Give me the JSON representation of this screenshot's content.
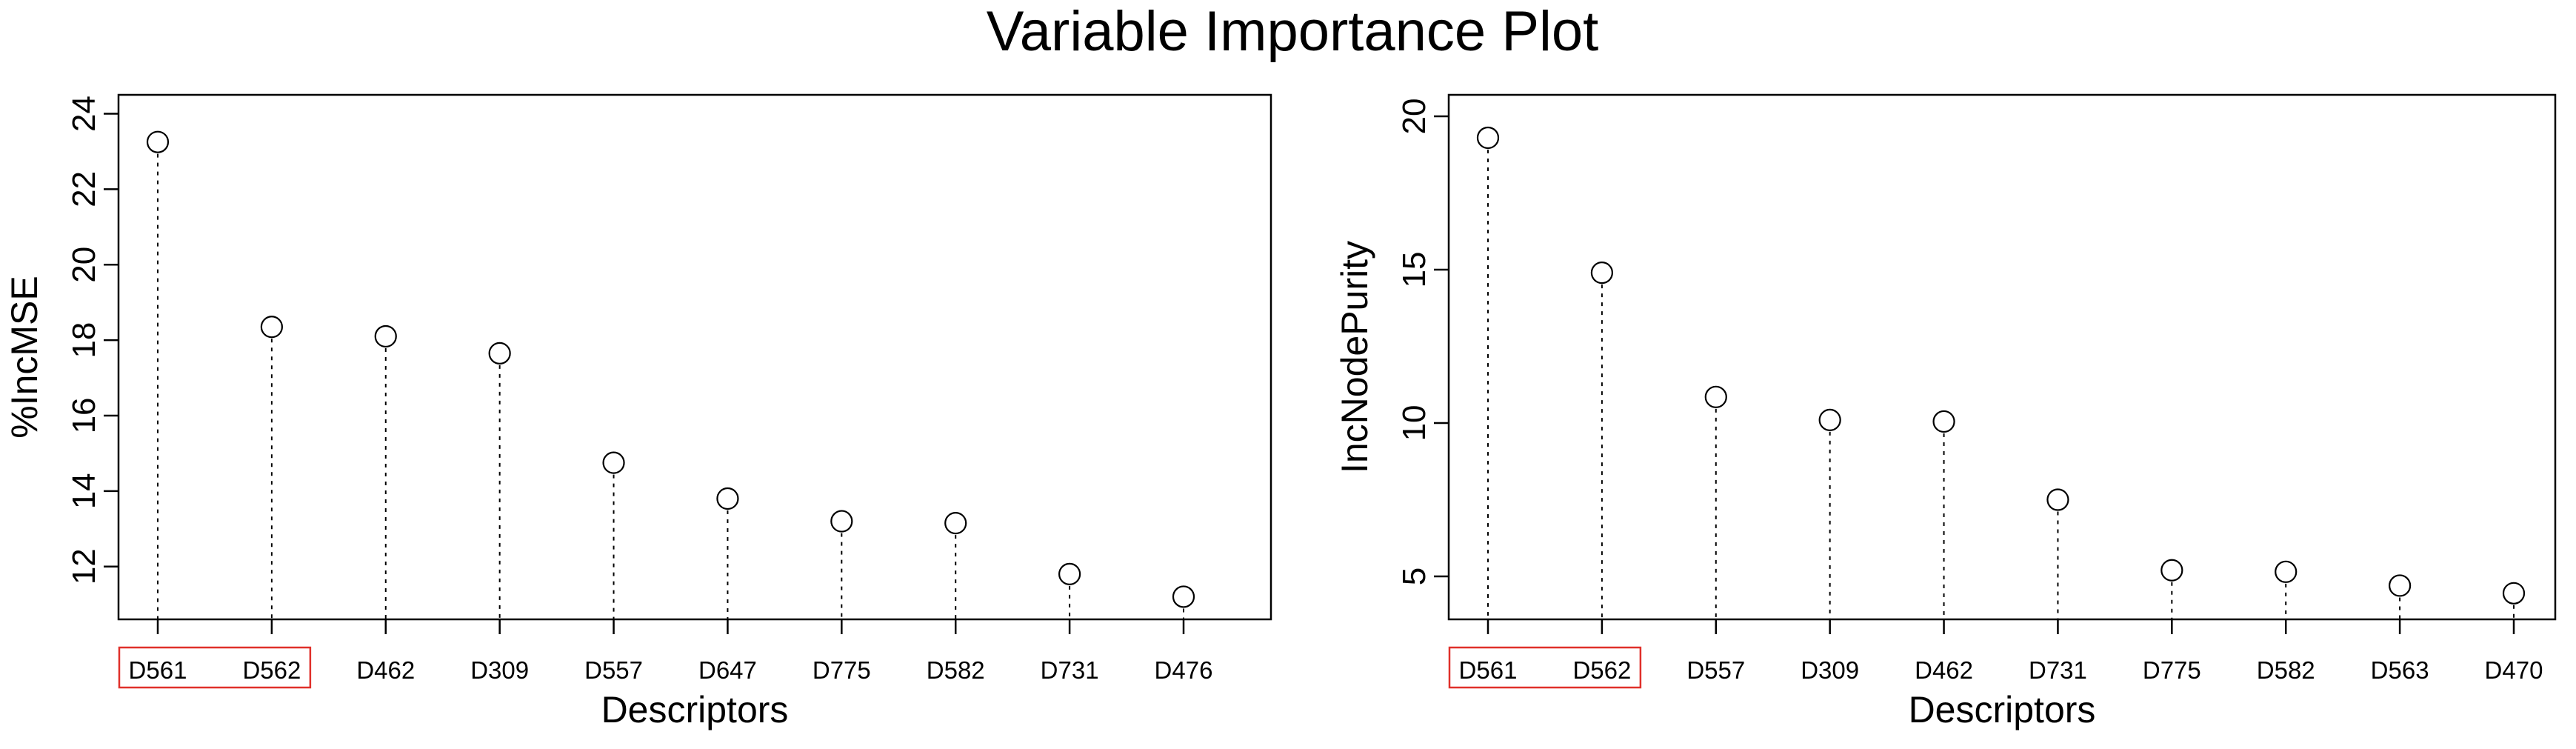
{
  "title": "Variable Importance Plot",
  "chart_data": [
    {
      "type": "scatter",
      "style": "dot-plot with dotted drop lines",
      "xlabel": "Descriptors",
      "ylabel": "%IncMSE",
      "categories": [
        "D561",
        "D562",
        "D462",
        "D309",
        "D557",
        "D647",
        "D775",
        "D582",
        "D731",
        "D476"
      ],
      "values": [
        23.25,
        18.35,
        18.1,
        17.65,
        14.75,
        13.8,
        13.2,
        13.15,
        11.8,
        11.2
      ],
      "yticks": [
        12,
        14,
        16,
        18,
        20,
        22,
        24
      ],
      "ylim": [
        10.6,
        24.5
      ],
      "highlighted_categories": [
        "D561",
        "D562"
      ],
      "highlight_color": "#e0302a",
      "grid": false
    },
    {
      "type": "scatter",
      "style": "dot-plot with dotted drop lines",
      "xlabel": "Descriptors",
      "ylabel": "IncNodePurity",
      "categories": [
        "D561",
        "D562",
        "D557",
        "D309",
        "D462",
        "D731",
        "D775",
        "D582",
        "D563",
        "D470"
      ],
      "values": [
        19.3,
        14.9,
        10.85,
        10.1,
        10.05,
        7.5,
        5.2,
        5.15,
        4.7,
        4.45
      ],
      "yticks": [
        5,
        10,
        15,
        20
      ],
      "ylim": [
        3.6,
        20.7
      ],
      "highlighted_categories": [
        "D561",
        "D562"
      ],
      "highlight_color": "#e0302a",
      "grid": false
    }
  ]
}
